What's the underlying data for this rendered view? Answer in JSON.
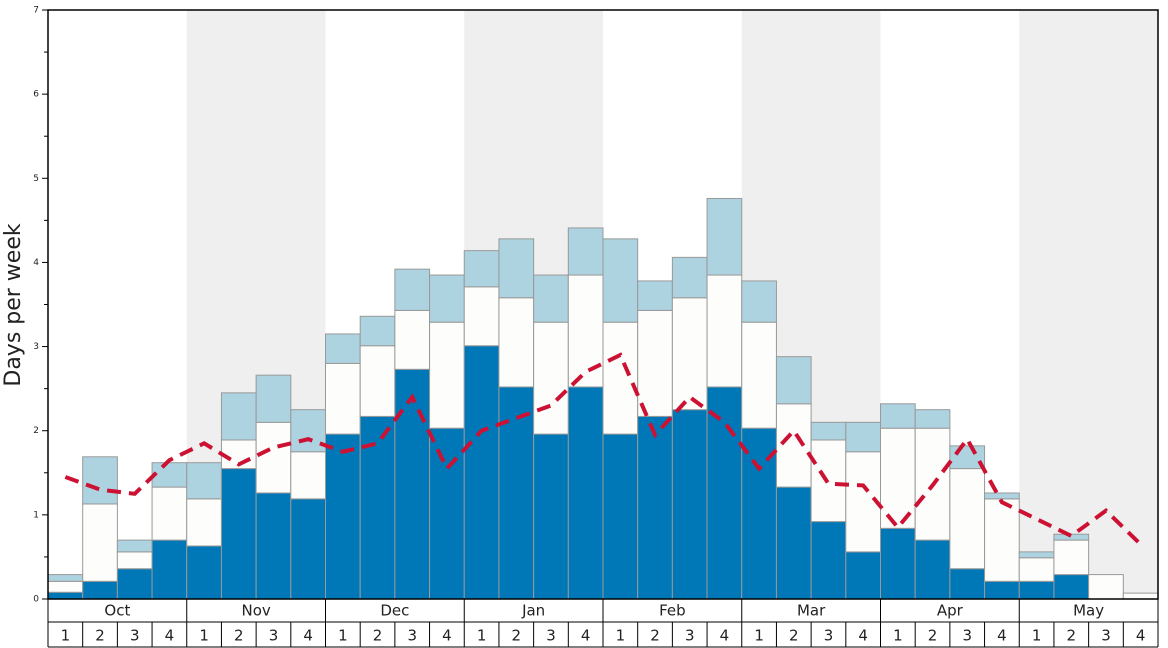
{
  "chart_data": {
    "type": "bar",
    "stacked": true,
    "ylabel": "Days per week",
    "groups": [
      "Oct",
      "Nov",
      "Dec",
      "Jan",
      "Feb",
      "Mar",
      "Apr",
      "May"
    ],
    "categories": [
      "1",
      "2",
      "3",
      "4",
      "1",
      "2",
      "3",
      "4",
      "1",
      "2",
      "3",
      "4",
      "1",
      "2",
      "3",
      "4",
      "1",
      "2",
      "3",
      "4",
      "1",
      "2",
      "3",
      "4",
      "1",
      "2",
      "3",
      "4",
      "1",
      "2",
      "3",
      "4"
    ],
    "series": [
      {
        "color": "#0077b6",
        "values": [
          0.08,
          0.21,
          0.36,
          0.7,
          0.63,
          1.55,
          1.26,
          1.19,
          1.96,
          2.17,
          2.73,
          2.03,
          3.01,
          2.52,
          1.96,
          2.52,
          1.96,
          2.17,
          2.25,
          2.52,
          2.03,
          1.33,
          0.92,
          0.56,
          0.84,
          0.7,
          0.36,
          0.21,
          0.21,
          0.29,
          0,
          0
        ]
      },
      {
        "color": "#fdfdfb",
        "values": [
          0.13,
          0.92,
          0.2,
          0.63,
          0.56,
          0.34,
          0.84,
          0.56,
          0.84,
          0.84,
          0.7,
          1.26,
          0.7,
          1.06,
          1.33,
          1.33,
          1.33,
          1.26,
          1.33,
          1.33,
          1.26,
          0.99,
          0.97,
          1.19,
          1.19,
          1.33,
          1.19,
          0.98,
          0.28,
          0.41,
          0.29,
          0.07
        ]
      },
      {
        "color": "#add3e0",
        "values": [
          0.08,
          0.56,
          0.14,
          0.29,
          0.43,
          0.56,
          0.56,
          0.5,
          0.35,
          0.35,
          0.49,
          0.56,
          0.43,
          0.7,
          0.56,
          0.56,
          0.99,
          0.35,
          0.48,
          0.91,
          0.49,
          0.56,
          0.21,
          0.35,
          0.29,
          0.22,
          0.27,
          0.07,
          0.07,
          0.07,
          0,
          0
        ]
      },
      {
        "type": "line",
        "dashed": true,
        "color": "#cc1133",
        "values": [
          1.45,
          1.3,
          1.25,
          1.65,
          1.85,
          1.6,
          1.8,
          1.9,
          1.75,
          1.85,
          2.4,
          1.55,
          2.0,
          2.15,
          2.3,
          2.7,
          2.9,
          1.95,
          2.4,
          2.1,
          1.55,
          2.0,
          1.37,
          1.35,
          0.85,
          1.35,
          1.9,
          1.15,
          0.95,
          0.75,
          1.05,
          0.65
        ]
      }
    ],
    "ylim": [
      0,
      7
    ],
    "yticks": [
      0,
      1,
      2,
      3,
      4,
      5,
      6,
      7
    ],
    "yminor_ticks": [
      0.5,
      1.5,
      2.5,
      3.5,
      4.5,
      5.5,
      6.5
    ],
    "shaded_groups": [
      1,
      3,
      5,
      7
    ]
  }
}
